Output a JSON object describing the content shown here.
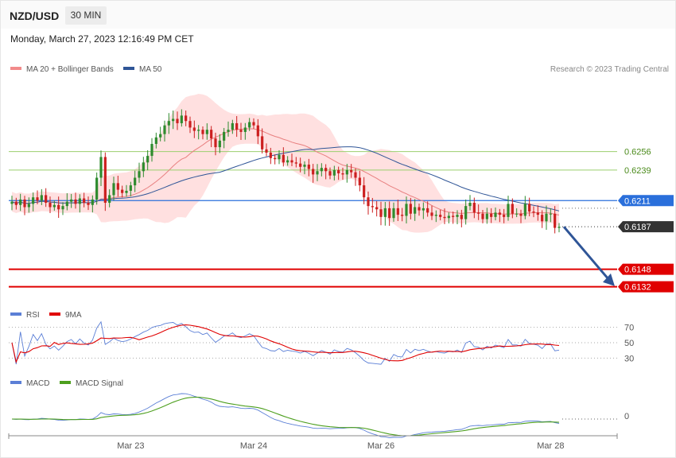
{
  "header": {
    "symbol": "NZD/USD",
    "timeframe": "30 MIN",
    "datetime": "Monday, March 27, 2023 12:16:49 PM CET"
  },
  "legend_main": [
    {
      "label": "MA 20 + Bollinger Bands",
      "color": "#f28b8b"
    },
    {
      "label": "MA 50",
      "color": "#2f5597"
    }
  ],
  "copyright": "Research © 2023 Trading Central",
  "colors": {
    "up": "#2e8b2e",
    "down": "#cc1f1f",
    "ma20": "#e88080",
    "band": "#ffd6d6",
    "ma50": "#2f5597",
    "support": "#e00000",
    "pivot": "#2a6fdb",
    "resistance": "#9bcf6e",
    "current": "#333333",
    "rsi": "#5b7fd6",
    "rsi_ma": "#e00000",
    "macd": "#5b7fd6",
    "macd_signal": "#4d9f1e",
    "arrow": "#2f5597"
  },
  "chart_data": [
    {
      "type": "candlestick",
      "title": "NZD/USD",
      "ylim": [
        0.6112,
        0.6325
      ],
      "x_labels": [
        "Mar 23",
        "Mar 24",
        "Mar 26",
        "Mar 28"
      ],
      "levels": [
        {
          "value": 0.6256,
          "label": "0.6256",
          "kind": "resistance"
        },
        {
          "value": 0.6239,
          "label": "0.6239",
          "kind": "resistance"
        },
        {
          "value": 0.6211,
          "label": "0.6211",
          "kind": "pivot"
        },
        {
          "value": 0.6187,
          "label": "0.6187",
          "kind": "current"
        },
        {
          "value": 0.6148,
          "label": "0.6148",
          "kind": "support"
        },
        {
          "value": 0.6132,
          "label": "0.6132",
          "kind": "support"
        }
      ],
      "close": [
        0.621,
        0.6207,
        0.6212,
        0.6205,
        0.6208,
        0.6214,
        0.6211,
        0.6216,
        0.6209,
        0.6205,
        0.6207,
        0.6203,
        0.6206,
        0.621,
        0.6212,
        0.6208,
        0.6213,
        0.6209,
        0.6207,
        0.6212,
        0.6232,
        0.6251,
        0.6209,
        0.6216,
        0.6227,
        0.6221,
        0.6218,
        0.622,
        0.6225,
        0.6232,
        0.6238,
        0.6246,
        0.6252,
        0.6263,
        0.6269,
        0.6272,
        0.628,
        0.6284,
        0.6286,
        0.6282,
        0.6289,
        0.6284,
        0.6278,
        0.6275,
        0.6276,
        0.6272,
        0.6276,
        0.6268,
        0.626,
        0.6266,
        0.6274,
        0.6276,
        0.6282,
        0.6276,
        0.6274,
        0.6278,
        0.6283,
        0.628,
        0.627,
        0.6258,
        0.6255,
        0.625,
        0.6249,
        0.6253,
        0.6246,
        0.6248,
        0.6246,
        0.6245,
        0.6242,
        0.6244,
        0.624,
        0.6235,
        0.6238,
        0.6241,
        0.6238,
        0.6234,
        0.6239,
        0.6236,
        0.6235,
        0.6239,
        0.6237,
        0.6232,
        0.6225,
        0.6214,
        0.6206,
        0.6205,
        0.6203,
        0.6196,
        0.6204,
        0.6195,
        0.6204,
        0.6198,
        0.6197,
        0.6208,
        0.6199,
        0.6205,
        0.6202,
        0.6204,
        0.62,
        0.6197,
        0.6198,
        0.6196,
        0.6195,
        0.6197,
        0.6196,
        0.6198,
        0.6194,
        0.6206,
        0.6209,
        0.62,
        0.6199,
        0.6194,
        0.6199,
        0.6196,
        0.62,
        0.6198,
        0.6196,
        0.6208,
        0.6199,
        0.6199,
        0.6197,
        0.6208,
        0.6201,
        0.62,
        0.6198,
        0.6192,
        0.6199,
        0.6199,
        0.6186,
        0.6187
      ]
    },
    {
      "type": "line",
      "title": "RSI",
      "series": [
        {
          "name": "RSI"
        },
        {
          "name": "9MA"
        }
      ],
      "levels": [
        70,
        50,
        30
      ],
      "ylim": [
        20,
        80
      ]
    },
    {
      "type": "line",
      "title": "MACD",
      "series": [
        {
          "name": "MACD"
        },
        {
          "name": "MACD Signal"
        }
      ],
      "levels": [
        0
      ]
    }
  ]
}
